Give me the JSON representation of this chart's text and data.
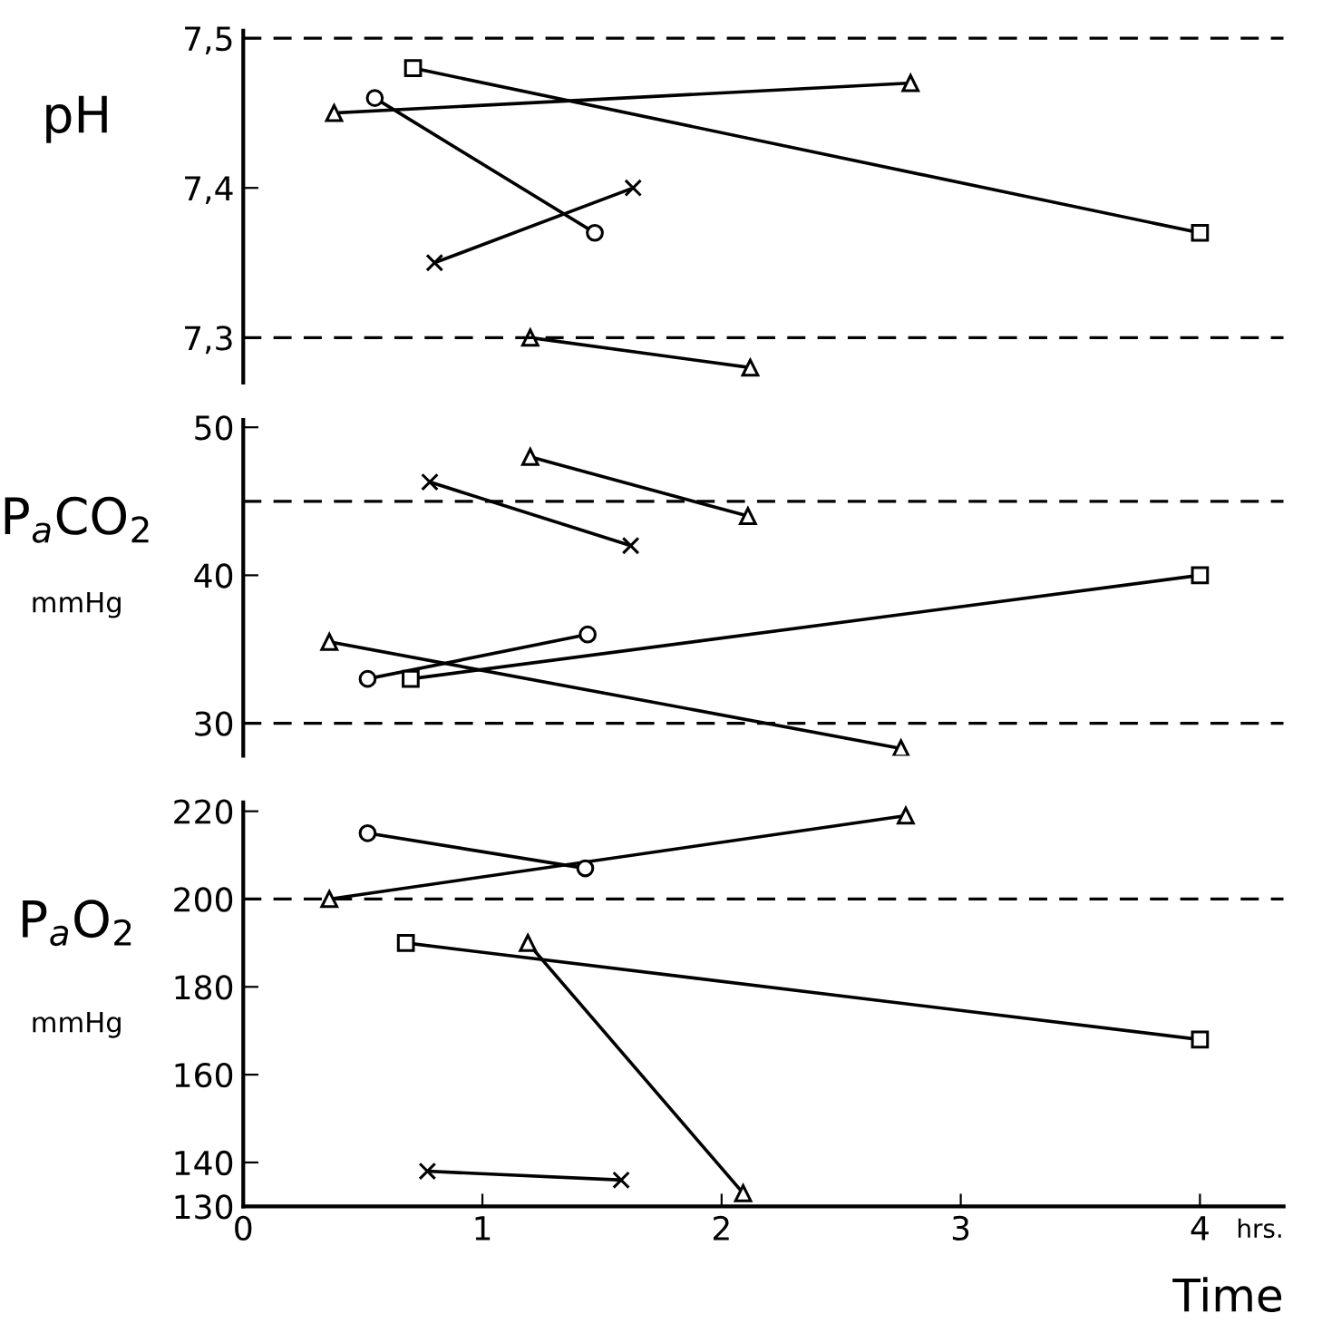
{
  "chart_data": [
    {
      "type": "line",
      "ylabel": "pH",
      "xlim": [
        0,
        4.35
      ],
      "ylim": [
        7.27,
        7.505
      ],
      "yticks": [
        {
          "value": 7.3,
          "label": "7,3"
        },
        {
          "value": 7.4,
          "label": "7,4"
        },
        {
          "value": 7.5,
          "label": "7,5"
        }
      ],
      "tick_labels": "y",
      "grid": false,
      "legend": false,
      "line_style": "solid",
      "ref_lines": [
        {
          "axis": "y",
          "value": 7.5,
          "line_style": "dashed",
          "color": "#000000"
        },
        {
          "axis": "y",
          "value": 7.3,
          "line_style": "dashed",
          "color": "#000000"
        }
      ],
      "series": [
        {
          "color": "#000000",
          "marker": "triangle",
          "x": [
            0.38,
            2.79
          ],
          "values": [
            7.45,
            7.47
          ]
        },
        {
          "color": "#000000",
          "marker": "circle",
          "x": [
            0.55,
            1.47
          ],
          "values": [
            7.46,
            7.37
          ]
        },
        {
          "color": "#000000",
          "marker": "square",
          "x": [
            0.71,
            4.0
          ],
          "values": [
            7.48,
            7.37
          ]
        },
        {
          "color": "#000000",
          "marker": "cross",
          "x": [
            0.8,
            1.63
          ],
          "values": [
            7.35,
            7.4
          ]
        },
        {
          "color": "#000000",
          "marker": "triangle",
          "x": [
            1.2,
            2.12
          ],
          "values": [
            7.3,
            7.28
          ]
        }
      ]
    },
    {
      "type": "line",
      "ylabel": "P$_{a}$CO$_{2}$",
      "annotations": [
        "mmHg"
      ],
      "xlim": [
        0,
        4.35
      ],
      "ylim": [
        27.8,
        50.5
      ],
      "yticks": [
        30,
        40,
        50
      ],
      "tick_labels": "y",
      "grid": false,
      "legend": false,
      "line_style": "solid",
      "ref_lines": [
        {
          "axis": "y",
          "value": 45,
          "line_style": "dashed",
          "color": "#000000"
        },
        {
          "axis": "y",
          "value": 30,
          "line_style": "dashed",
          "color": "#000000"
        }
      ],
      "series": [
        {
          "color": "#000000",
          "marker": "triangle",
          "x": [
            0.36,
            2.75
          ],
          "values": [
            35.5,
            28.3
          ]
        },
        {
          "color": "#000000",
          "marker": "circle",
          "x": [
            0.52,
            1.44
          ],
          "values": [
            33,
            36
          ]
        },
        {
          "color": "#000000",
          "marker": "square",
          "x": [
            0.7,
            4.0
          ],
          "values": [
            33,
            40
          ]
        },
        {
          "color": "#000000",
          "marker": "cross",
          "x": [
            0.78,
            1.62
          ],
          "values": [
            46.3,
            42
          ]
        },
        {
          "color": "#000000",
          "marker": "triangle",
          "x": [
            1.2,
            2.11
          ],
          "values": [
            48,
            44
          ]
        }
      ]
    },
    {
      "type": "line",
      "ylabel": "P$_{a}$O$_{2}$",
      "xlabel": "Time",
      "annotations": [
        "mmHg",
        "hrs."
      ],
      "xlim": [
        0,
        4.35
      ],
      "xticks": [
        0,
        1,
        2,
        3,
        4
      ],
      "ylim": [
        130,
        222
      ],
      "yticks": [
        130,
        140,
        160,
        180,
        200,
        220
      ],
      "grid": false,
      "legend": false,
      "line_style": "solid",
      "ref_lines": [
        {
          "axis": "y",
          "value": 200,
          "line_style": "dashed",
          "color": "#000000"
        }
      ],
      "series": [
        {
          "color": "#000000",
          "marker": "triangle",
          "x": [
            0.36,
            2.77
          ],
          "values": [
            200,
            219
          ]
        },
        {
          "color": "#000000",
          "marker": "circle",
          "x": [
            0.52,
            1.43
          ],
          "values": [
            215,
            207
          ]
        },
        {
          "color": "#000000",
          "marker": "square",
          "x": [
            0.68,
            4.0
          ],
          "values": [
            190,
            168
          ]
        },
        {
          "color": "#000000",
          "marker": "cross",
          "x": [
            0.77,
            1.58
          ],
          "values": [
            138,
            136
          ]
        },
        {
          "color": "#000000",
          "marker": "triangle",
          "x": [
            1.19,
            2.09
          ],
          "values": [
            190,
            133
          ]
        }
      ]
    }
  ]
}
